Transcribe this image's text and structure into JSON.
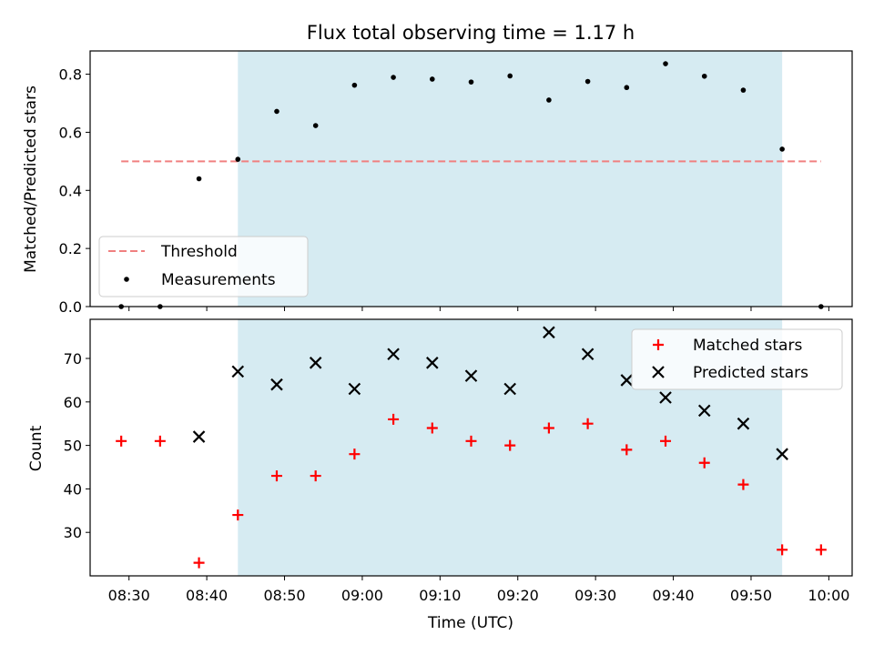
{
  "chart_data": [
    {
      "type": "scatter",
      "panel": "top",
      "title": "Flux total observing time = 1.17 h",
      "ylabel": "Matched/Predicted stars",
      "ylim": [
        0.0,
        0.88
      ],
      "yticks": [
        "0.0",
        "0.2",
        "0.4",
        "0.6",
        "0.8"
      ],
      "xlim": [
        "08:25",
        "10:03"
      ],
      "shaded_interval": [
        "08:44",
        "09:54"
      ],
      "shade_color": "#add8e6",
      "threshold": {
        "name": "Threshold",
        "value": 0.5,
        "x_range": [
          "08:29",
          "09:59"
        ],
        "color": "#f08080",
        "style": "dashed"
      },
      "series": [
        {
          "name": "Measurements",
          "marker": "dot",
          "color": "#000000",
          "x": [
            "08:29",
            "08:34",
            "08:39",
            "08:44",
            "08:49",
            "08:54",
            "08:59",
            "09:04",
            "09:09",
            "09:14",
            "09:19",
            "09:24",
            "09:29",
            "09:34",
            "09:39",
            "09:44",
            "09:49",
            "09:54",
            "09:59"
          ],
          "y": [
            0.0,
            0.0,
            0.44,
            0.507,
            0.672,
            0.623,
            0.762,
            0.789,
            0.783,
            0.773,
            0.794,
            0.711,
            0.775,
            0.754,
            0.836,
            0.793,
            0.745,
            0.542,
            0.0
          ]
        }
      ],
      "legend_position": "lower-left",
      "grid": false
    },
    {
      "type": "scatter",
      "panel": "bottom",
      "xlabel": "Time (UTC)",
      "ylabel": "Count",
      "ylim": [
        20,
        79
      ],
      "yticks": [
        "30",
        "40",
        "50",
        "60",
        "70"
      ],
      "xticks": [
        "08:30",
        "08:40",
        "08:50",
        "09:00",
        "09:10",
        "09:20",
        "09:30",
        "09:40",
        "09:50",
        "10:00"
      ],
      "xlim": [
        "08:25",
        "10:03"
      ],
      "shaded_interval": [
        "08:44",
        "09:54"
      ],
      "shade_color": "#add8e6",
      "series": [
        {
          "name": "Matched stars",
          "marker": "plus",
          "color": "#ff0000",
          "x": [
            "08:29",
            "08:34",
            "08:39",
            "08:44",
            "08:49",
            "08:54",
            "08:59",
            "09:04",
            "09:09",
            "09:14",
            "09:19",
            "09:24",
            "09:29",
            "09:34",
            "09:39",
            "09:44",
            "09:49",
            "09:54",
            "09:59"
          ],
          "y": [
            51,
            51,
            23,
            34,
            43,
            43,
            48,
            56,
            54,
            51,
            50,
            54,
            55,
            49,
            51,
            46,
            41,
            26,
            26
          ]
        },
        {
          "name": "Predicted stars",
          "marker": "x",
          "color": "#000000",
          "x": [
            "08:39",
            "08:44",
            "08:49",
            "08:54",
            "08:59",
            "09:04",
            "09:09",
            "09:14",
            "09:19",
            "09:24",
            "09:29",
            "09:34",
            "09:39",
            "09:44",
            "09:49",
            "09:54"
          ],
          "y": [
            52,
            67,
            64,
            69,
            63,
            71,
            69,
            66,
            63,
            76,
            71,
            65,
            61,
            58,
            55,
            48
          ]
        }
      ],
      "legend_position": "upper-right",
      "grid": false
    }
  ]
}
